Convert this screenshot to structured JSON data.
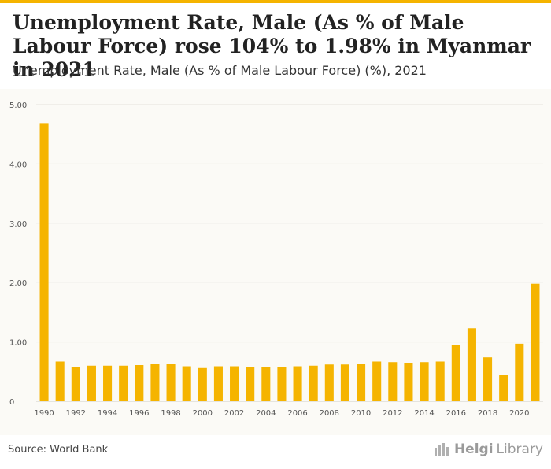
{
  "header": {
    "title": "Unemployment Rate, Male (As % of Male Labour Force) rose 104% to 1.98% in Myanmar in 2021",
    "subtitle": "Unemployment Rate, Male (As % of Male Labour Force) (%), 2021"
  },
  "footer": {
    "source": "Source: World Bank",
    "brand_bold": "Helgi",
    "brand_light": "Library"
  },
  "colors": {
    "bar": "#f5b400",
    "accent": "#f5b400"
  },
  "chart_data": {
    "type": "bar",
    "categories": [
      "1990",
      "1991",
      "1992",
      "1993",
      "1994",
      "1995",
      "1996",
      "1997",
      "1998",
      "1999",
      "2000",
      "2001",
      "2002",
      "2003",
      "2004",
      "2005",
      "2006",
      "2007",
      "2008",
      "2009",
      "2010",
      "2011",
      "2012",
      "2013",
      "2014",
      "2015",
      "2016",
      "2017",
      "2018",
      "2019",
      "2020",
      "2021"
    ],
    "x_tick_labels": [
      "1990",
      "1992",
      "1994",
      "1996",
      "1998",
      "2000",
      "2002",
      "2004",
      "2006",
      "2008",
      "2010",
      "2012",
      "2014",
      "2016",
      "2018",
      "2020"
    ],
    "values": [
      4.69,
      0.67,
      0.58,
      0.6,
      0.6,
      0.6,
      0.61,
      0.63,
      0.63,
      0.59,
      0.56,
      0.59,
      0.59,
      0.58,
      0.58,
      0.58,
      0.59,
      0.6,
      0.62,
      0.62,
      0.63,
      0.67,
      0.66,
      0.65,
      0.66,
      0.67,
      0.95,
      1.23,
      0.74,
      0.44,
      0.97,
      1.98
    ],
    "y_ticks": [
      "0",
      "1.00",
      "2.00",
      "3.00",
      "4.00",
      "5.00"
    ],
    "ylim": [
      0,
      5
    ],
    "grid": true,
    "xlabel": "",
    "ylabel": ""
  }
}
